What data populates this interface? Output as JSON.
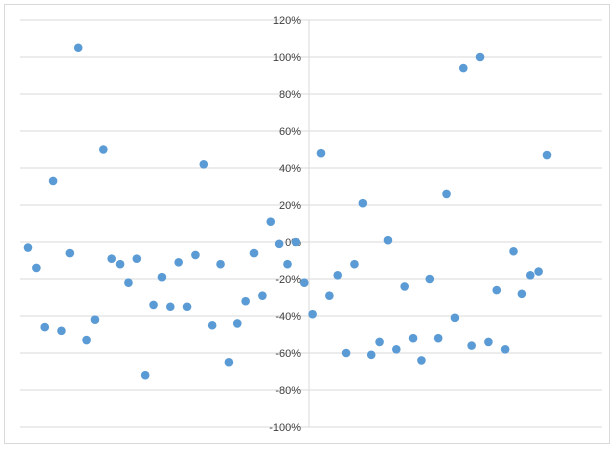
{
  "chart_data": {
    "type": "scatter",
    "title": "",
    "xlabel": "",
    "ylabel": "",
    "ylim": [
      -1.0,
      1.2
    ],
    "yticks": [
      1.2,
      1.0,
      0.8,
      0.6,
      0.4,
      0.2,
      0.0,
      -0.2,
      -0.4,
      -0.6,
      -0.8,
      -1.0
    ],
    "ytick_labels": [
      "120%",
      "100%",
      "80%",
      "60%",
      "40%",
      "20%",
      "0%",
      "-20%",
      "-40%",
      "-60%",
      "-80%",
      "-100%"
    ],
    "grid": true,
    "legend": "none",
    "marker_color": "#5b9bd5",
    "gridline_color": "#d9d9d9",
    "series": [
      {
        "values": [
          -0.03,
          -0.14,
          -0.46,
          0.33,
          -0.48,
          -0.06,
          1.05,
          -0.53,
          -0.42,
          0.5,
          -0.09,
          -0.12,
          -0.22,
          -0.09,
          -0.72,
          -0.34,
          -0.19,
          -0.35,
          -0.11,
          -0.35,
          -0.07,
          0.42,
          -0.45,
          -0.12,
          -0.65,
          -0.44,
          -0.32,
          -0.06,
          -0.29,
          0.11,
          -0.01,
          -0.12,
          0.0,
          -0.22,
          -0.39,
          0.48,
          -0.29,
          -0.18,
          -0.6,
          -0.12,
          0.21,
          -0.61,
          -0.54,
          0.01,
          -0.58,
          -0.24,
          -0.52,
          -0.64,
          -0.2,
          -0.52,
          0.26,
          -0.41,
          0.94,
          -0.56,
          1.0,
          -0.54,
          -0.26,
          -0.58,
          -0.05,
          -0.28,
          -0.18,
          -0.16,
          0.47
        ]
      }
    ]
  }
}
